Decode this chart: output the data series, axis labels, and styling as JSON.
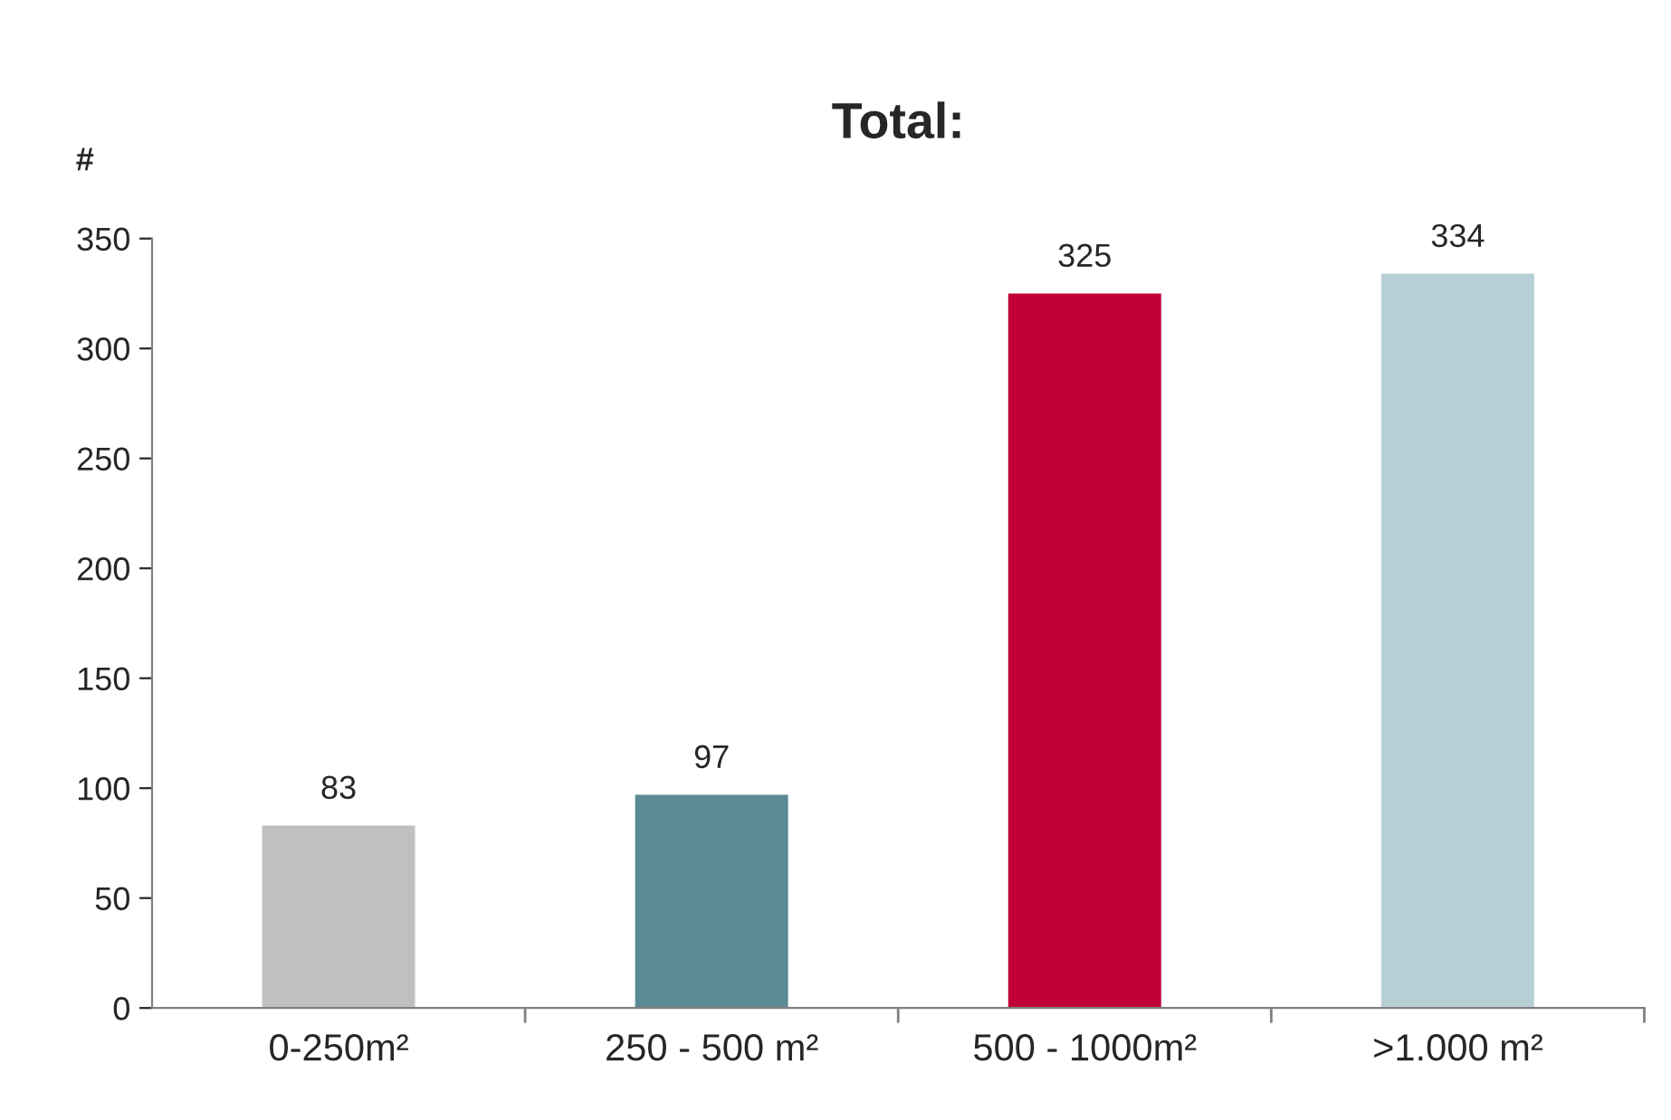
{
  "chart_data": {
    "type": "bar",
    "title": "Total:",
    "ylabel": "#",
    "categories": [
      "0-250m²",
      "250 - 500 m²",
      "500 - 1000m²",
      ">1.000 m²"
    ],
    "values": [
      83,
      97,
      325,
      334
    ],
    "colors": [
      "#c0c0c0",
      "#5b8a94",
      "#c00037",
      "#b8cfd6"
    ],
    "ylim": [
      0,
      350
    ],
    "yticks": [
      0,
      50,
      100,
      150,
      200,
      250,
      300,
      350
    ],
    "data_labels": true,
    "grid": false,
    "legend": false
  }
}
